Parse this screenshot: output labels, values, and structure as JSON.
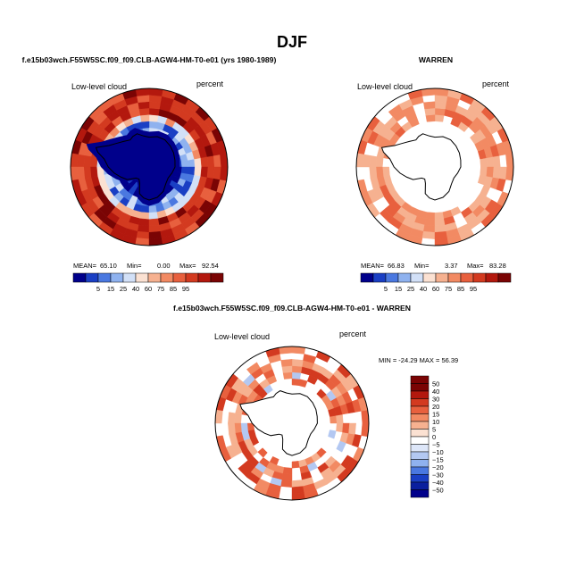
{
  "page_title": "DJF",
  "panels": {
    "model": {
      "title": "f.e15b03wch.F55W5SC.f09_f09.CLB-AGW4-HM-T0-e01 (yrs 1980-1989)",
      "variable": "Low-level cloud",
      "units": "percent",
      "stats": {
        "mean_label": "MEAN=",
        "mean": "65.10",
        "min_label": "Min=",
        "min": "0.00",
        "max_label": "Max=",
        "max": "92.54"
      }
    },
    "obs": {
      "title": "WARREN",
      "variable": "Low-level cloud",
      "units": "percent",
      "stats": {
        "mean_label": "MEAN=",
        "mean": "66.83",
        "min_label": "Min=",
        "min": "3.37",
        "max_label": "Max=",
        "max": "83.28"
      }
    },
    "diff": {
      "title": "f.e15b03wch.F55W5SC.f09_f09.CLB-AGW4-HM-T0-e01 - WARREN",
      "variable": "Low-level cloud",
      "units": "percent",
      "stats_text": "MIN = -24.29  MAX =  56.39"
    }
  },
  "chart_data": [
    {
      "type": "heatmap",
      "projection": "south-polar-stereographic",
      "title": "f.e15b03wch.F55W5SC.f09_f09.CLB-AGW4-HM-T0-e01 (yrs 1980-1989)",
      "variable": "Low-level cloud",
      "units": "percent",
      "mean": 65.1,
      "min": 0.0,
      "max": 92.54,
      "colorbar_levels": [
        5,
        15,
        25,
        40,
        60,
        75,
        85,
        95
      ],
      "colorbar_labels": [
        "5",
        "15",
        "25",
        "40",
        "60",
        "75",
        "85",
        "95"
      ],
      "colors": [
        "#00008b",
        "#1a3fc4",
        "#4a78e0",
        "#8fb2ef",
        "#d2e0f7",
        "#fbe1d2",
        "#f6b190",
        "#f28a63",
        "#e8603e",
        "#d33a20",
        "#b3180e",
        "#7a0404"
      ]
    },
    {
      "type": "heatmap",
      "projection": "south-polar-stereographic",
      "title": "WARREN",
      "variable": "Low-level cloud",
      "units": "percent",
      "mean": 66.83,
      "min": 3.37,
      "max": 83.28,
      "colorbar_levels": [
        5,
        15,
        25,
        40,
        60,
        75,
        85,
        95
      ],
      "colorbar_labels": [
        "5",
        "15",
        "25",
        "40",
        "60",
        "75",
        "85",
        "95"
      ],
      "colors": [
        "#00008b",
        "#1a3fc4",
        "#4a78e0",
        "#8fb2ef",
        "#d2e0f7",
        "#fbe1d2",
        "#f6b190",
        "#f28a63",
        "#e8603e",
        "#d33a20",
        "#b3180e",
        "#7a0404"
      ]
    },
    {
      "type": "heatmap",
      "projection": "south-polar-stereographic",
      "title": "f.e15b03wch.F55W5SC.f09_f09.CLB-AGW4-HM-T0-e01 - WARREN",
      "variable": "Low-level cloud",
      "units": "percent",
      "min": -24.29,
      "max": 56.39,
      "colorbar_levels": [
        50,
        40,
        30,
        20,
        15,
        10,
        5,
        0,
        -5,
        -10,
        -15,
        -20,
        -30,
        -40,
        -50
      ],
      "colorbar_labels": [
        "50",
        "40",
        "30",
        "20",
        "15",
        "10",
        "5",
        "0",
        "−5",
        "−10",
        "−15",
        "−20",
        "−30",
        "−40",
        "−50"
      ],
      "colors": [
        "#7a0404",
        "#b3180e",
        "#d33a20",
        "#e8603e",
        "#f28a63",
        "#f6b190",
        "#fbe1d2",
        "#ffffff",
        "#dde6f8",
        "#b3c8f2",
        "#8fb2ef",
        "#4a78e0",
        "#1a3fc4",
        "#0a1f9e",
        "#00008b"
      ]
    }
  ]
}
